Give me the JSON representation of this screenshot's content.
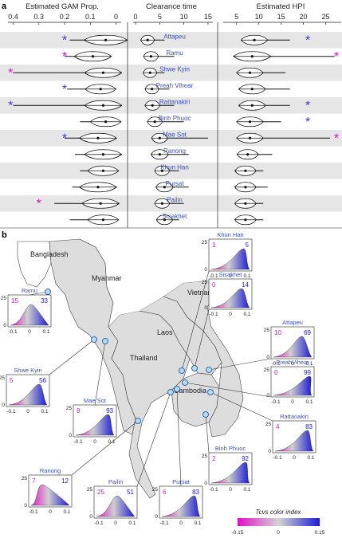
{
  "panel_a": {
    "label": "a",
    "sites": [
      "Attapeu",
      "Ramu",
      "Shwe Kyin",
      "Preah Vihear",
      "Rattanakiri",
      "Binh Phuoc",
      "Mae Sot",
      "Ranong",
      "Khun Han",
      "Pursat",
      "Pailin",
      "Sisakhet"
    ],
    "gam": {
      "title": "Estimated GAM Prop.",
      "ticks": [
        "0.4",
        "0.3",
        "0.2",
        "0.1",
        "0"
      ],
      "tick_values": [
        0.4,
        0.3,
        0.2,
        0.1,
        0
      ],
      "range": [
        0.42,
        -0.02
      ],
      "medians": [
        0.04,
        0.09,
        0.05,
        0.06,
        0.05,
        0.04,
        0.07,
        0.05,
        0.05,
        0.07,
        0.06,
        0.05
      ],
      "widths": [
        0.07,
        0.06,
        0.06,
        0.05,
        0.06,
        0.05,
        0.06,
        0.06,
        0.05,
        0.06,
        0.06,
        0.05
      ],
      "tail_min": [
        0.18,
        0.2,
        0.4,
        0.19,
        0.4,
        0.14,
        0.2,
        0.16,
        0.14,
        0.17,
        0.24,
        0.18
      ],
      "tail_max": [
        -0.01,
        0.0,
        -0.01,
        -0.01,
        -0.01,
        -0.01,
        -0.01,
        -0.01,
        -0.01,
        -0.01,
        -0.01,
        -0.01
      ],
      "stars": [
        {
          "site": "Attapeu",
          "value": 0.2,
          "color": "#3a3ad6"
        },
        {
          "site": "Ramu",
          "value": 0.2,
          "color": "#e010c8"
        },
        {
          "site": "Shwe Kyin",
          "value": 0.41,
          "color": "#e010c8"
        },
        {
          "site": "Preah Vihear",
          "value": 0.2,
          "color": "#3a3ad6"
        },
        {
          "site": "Rattanakiri",
          "value": 0.41,
          "color": "#3a3ad6"
        },
        {
          "site": "Mae Sot",
          "value": 0.2,
          "color": "#3a3ad6"
        },
        {
          "site": "Pailin",
          "value": 0.3,
          "color": "#e010c8"
        }
      ]
    },
    "clearance": {
      "title": "Clearance time",
      "ticks": [
        "0",
        "5",
        "10",
        "15"
      ],
      "tick_values": [
        0,
        5,
        10,
        15
      ],
      "range": [
        -0.5,
        16
      ],
      "medians": [
        2.5,
        3.2,
        3.0,
        3.4,
        3.5,
        4.0,
        5.0,
        5.0,
        5.5,
        6.0,
        5.5,
        6.0
      ],
      "widths": [
        1.2,
        1.3,
        1.2,
        1.2,
        1.3,
        1.3,
        1.4,
        1.5,
        1.3,
        1.5,
        1.3,
        1.4
      ],
      "tail_max": [
        6,
        8,
        6,
        7,
        8,
        10,
        15,
        11,
        9,
        11,
        10,
        9
      ]
    },
    "hpi": {
      "title": "Estimated HPI",
      "ticks": [
        "5",
        "10",
        "15",
        "20",
        "25"
      ],
      "tick_values": [
        5,
        10,
        15,
        20,
        25
      ],
      "range": [
        2,
        28.5
      ],
      "medians": [
        9,
        8.5,
        8,
        8.5,
        8.5,
        8,
        8,
        7.5,
        7,
        7,
        7,
        7
      ],
      "widths": [
        2.5,
        3.5,
        2.5,
        2.5,
        2.5,
        2.5,
        2.5,
        2.0,
        2.0,
        2.0,
        2.0,
        2.0
      ],
      "tail_max": [
        17,
        27,
        16,
        17,
        17,
        15,
        26,
        13,
        11,
        12,
        11,
        11
      ],
      "stars": [
        {
          "site": "Attapeu",
          "value": 21,
          "color": "#3a3ad6"
        },
        {
          "site": "Ramu",
          "value": 28,
          "color": "#e010c8"
        },
        {
          "site": "Rattanakiri",
          "value": 21,
          "color": "#3a3ad6"
        },
        {
          "site": "Binh Phuoc",
          "value": 21,
          "color": "#3a3ad6"
        },
        {
          "site": "Mae Sot",
          "value": 28,
          "color": "#e010c8"
        }
      ]
    }
  },
  "panel_b": {
    "label": "b",
    "map_labels": [
      "Bangladesh",
      "Myanmar",
      "Vietnam",
      "Laos",
      "Thailand",
      "Cambodia"
    ],
    "colorbar": {
      "title": "Tcvs color index",
      "ticks": [
        "-0.15",
        "0",
        "0.15"
      ],
      "colors": [
        "#e010c8",
        "#c8c8c8",
        "#1a1ad6"
      ]
    },
    "insets": [
      {
        "name": "Ramu",
        "left": "15",
        "right": "33",
        "yticks": [
          "25",
          "0"
        ],
        "xticks": [
          "-0.1",
          "0",
          "0.1"
        ]
      },
      {
        "name": "Khun Han",
        "left": "1",
        "right": "5",
        "yticks": [
          "25",
          "0"
        ],
        "xticks": [
          "-0.1",
          "0",
          "0.1"
        ]
      },
      {
        "name": "Sisakhet",
        "left": "0",
        "right": "14",
        "yticks": [
          "25",
          "0"
        ],
        "xticks": [
          "-0.1",
          "0",
          "0.1"
        ]
      },
      {
        "name": "Attapeu",
        "left": "10",
        "right": "69",
        "yticks": [
          "25",
          "0"
        ],
        "xticks": [
          "-0.1",
          "0",
          "0.1"
        ]
      },
      {
        "name": "Shwe Kyin",
        "left": "5",
        "right": "56",
        "yticks": [
          "25",
          "0"
        ],
        "xticks": [
          "-0.1",
          "0",
          "0.1"
        ]
      },
      {
        "name": "PreahVihear",
        "left": "0",
        "right": "99",
        "yticks": [
          "25",
          "0"
        ],
        "xticks": [
          "-0.1",
          "0",
          "0.1"
        ]
      },
      {
        "name": "Mae Sot",
        "left": "8",
        "right": "93",
        "yticks": [
          "25",
          "0"
        ],
        "xticks": [
          "-0.1",
          "0",
          "0.1"
        ]
      },
      {
        "name": "Rattanakiri",
        "left": "4",
        "right": "83",
        "yticks": [
          "25",
          "0"
        ],
        "xticks": [
          "-0.1",
          "0",
          "0.1"
        ]
      },
      {
        "name": "Binh Phuoc",
        "left": "2",
        "right": "92",
        "yticks": [
          "25",
          "0"
        ],
        "xticks": [
          "-0.1",
          "0",
          "0.1"
        ]
      },
      {
        "name": "Ranong",
        "left": "7",
        "right": "12",
        "yticks": [
          "25",
          "0"
        ],
        "xticks": [
          "-0.1",
          "0",
          "0.1"
        ]
      },
      {
        "name": "Pailin",
        "left": "25",
        "right": "51",
        "yticks": [
          "25",
          "0"
        ],
        "xticks": [
          "-0.1",
          "0",
          "0.1"
        ]
      },
      {
        "name": "Pursat",
        "left": "6",
        "right": "83",
        "yticks": [
          "25",
          "0"
        ],
        "xticks": [
          "-0.1",
          "0",
          "0.1"
        ]
      }
    ]
  },
  "chart_data": [
    {
      "type": "violin",
      "title": "Estimated GAM Prop.",
      "categories": [
        "Attapeu",
        "Ramu",
        "Shwe Kyin",
        "Preah Vihear",
        "Rattanakiri",
        "Binh Phuoc",
        "Mae Sot",
        "Ranong",
        "Khun Han",
        "Pursat",
        "Pailin",
        "Sisakhet"
      ],
      "medians": [
        0.04,
        0.09,
        0.05,
        0.06,
        0.05,
        0.04,
        0.07,
        0.05,
        0.05,
        0.07,
        0.06,
        0.05
      ],
      "xlim": [
        0.4,
        0
      ]
    },
    {
      "type": "violin",
      "title": "Clearance time",
      "categories": [
        "Attapeu",
        "Ramu",
        "Shwe Kyin",
        "Preah Vihear",
        "Rattanakiri",
        "Binh Phuoc",
        "Mae Sot",
        "Ranong",
        "Khun Han",
        "Pursat",
        "Pailin",
        "Sisakhet"
      ],
      "medians": [
        2.5,
        3.2,
        3.0,
        3.4,
        3.5,
        4.0,
        5.0,
        5.0,
        5.5,
        6.0,
        5.5,
        6.0
      ],
      "xlim": [
        0,
        15
      ]
    },
    {
      "type": "violin",
      "title": "Estimated HPI",
      "categories": [
        "Attapeu",
        "Ramu",
        "Shwe Kyin",
        "Preah Vihear",
        "Rattanakiri",
        "Binh Phuoc",
        "Mae Sot",
        "Ranong",
        "Khun Han",
        "Pursat",
        "Pailin",
        "Sisakhet"
      ],
      "medians": [
        9,
        8.5,
        8,
        8.5,
        8.5,
        8,
        8,
        7.5,
        7,
        7,
        7,
        7
      ],
      "xlim": [
        5,
        25
      ]
    }
  ]
}
